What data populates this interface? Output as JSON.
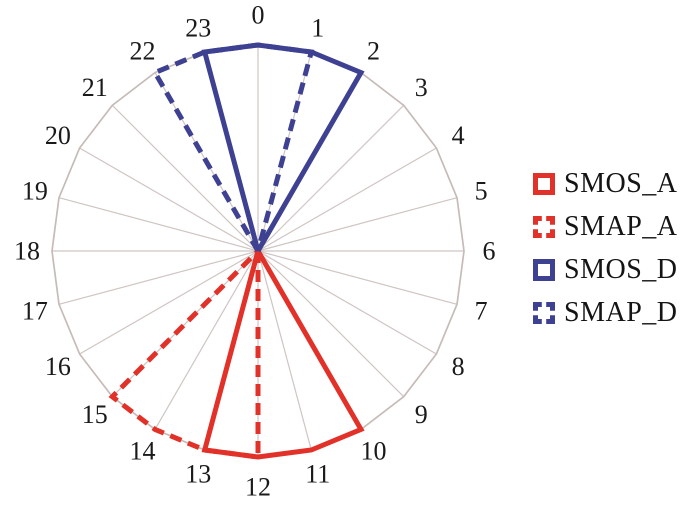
{
  "figure": {
    "background_color": "#ffffff",
    "text_color": "#1a1a1a"
  },
  "chart_data": {
    "type": "polar-wedge",
    "title": "",
    "description": "24-hour clock polar diagram showing satellite ascending (A) and descending (D) overpass time windows",
    "angular_axis": {
      "unit": "hour of day",
      "direction": "clockwise",
      "zero_position": "top",
      "hours_total": 24,
      "tick_labels": [
        "0",
        "1",
        "2",
        "3",
        "4",
        "5",
        "6",
        "7",
        "8",
        "9",
        "10",
        "11",
        "12",
        "13",
        "14",
        "15",
        "16",
        "17",
        "18",
        "19",
        "20",
        "21",
        "22",
        "23"
      ],
      "grid_on": true,
      "grid_color": "#cfc5c2",
      "outline_color": "#c6bbb7"
    },
    "radial_axis": {
      "ticks_visible": false,
      "max": 1
    },
    "series": [
      {
        "name": "SMOS_A",
        "color": "#e13128",
        "line_style": "solid",
        "start_hour": 10,
        "end_hour": 13,
        "radius": 1
      },
      {
        "name": "SMAP_A",
        "color": "#e13128",
        "line_style": "dashed",
        "start_hour": 12,
        "end_hour": 15,
        "radius": 1
      },
      {
        "name": "SMOS_D",
        "color": "#3e4191",
        "line_style": "solid",
        "start_hour": 23,
        "end_hour": 2,
        "radius": 1
      },
      {
        "name": "SMAP_D",
        "color": "#3e4191",
        "line_style": "dashed",
        "start_hour": 22,
        "end_hour": 1,
        "radius": 1
      }
    ],
    "legend": {
      "position": "right",
      "entries": [
        "SMOS_A",
        "SMAP_A",
        "SMOS_D",
        "SMAP_D"
      ],
      "marker_shape": "square-outline"
    }
  }
}
